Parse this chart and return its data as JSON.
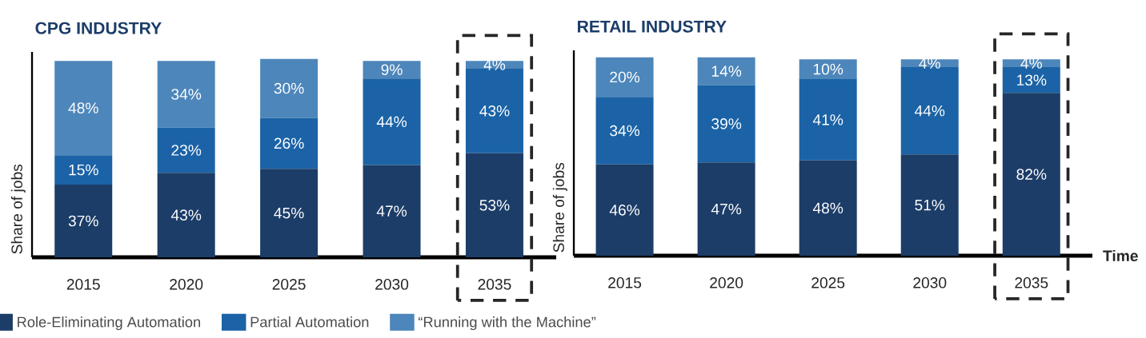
{
  "chart_data": [
    {
      "type": "bar",
      "title": "CPG INDUSTRY",
      "ylabel": "Share of jobs",
      "stacked": true,
      "legend": "bottom",
      "categories": [
        "2015",
        "2020",
        "2025",
        "2030",
        "2035"
      ],
      "series": [
        {
          "name": "Role-Eliminating Automation",
          "color": "#1c3d68",
          "values": [
            37,
            43,
            45,
            47,
            53
          ],
          "value_labels": [
            "37%",
            "43%",
            "45%",
            "47%",
            "53%"
          ]
        },
        {
          "name": "Partial Automation",
          "color": "#1b63a6",
          "values": [
            15,
            23,
            26,
            44,
            43
          ],
          "value_labels": [
            "15%",
            "23%",
            "26%",
            "44%",
            "43%"
          ]
        },
        {
          "name": "“Running with the Machine”",
          "color": "#4d86ba",
          "values": [
            48,
            34,
            30,
            9,
            4
          ],
          "value_labels": [
            "48%",
            "34%",
            "30%",
            "9%",
            "4%"
          ]
        }
      ]
    },
    {
      "type": "bar",
      "title": "RETAIL INDUSTRY",
      "ylabel": "Share of jobs",
      "xlabel": "Time",
      "stacked": true,
      "categories": [
        "2015",
        "2020",
        "2025",
        "2030",
        "2035"
      ],
      "series": [
        {
          "color": "#1c3d68",
          "values": [
            46,
            47,
            48,
            51,
            82
          ],
          "value_labels": [
            "46%",
            "47%",
            "48%",
            "51%",
            "82%"
          ]
        },
        {
          "color": "#1b63a6",
          "values": [
            34,
            39,
            41,
            44,
            13
          ],
          "value_labels": [
            "34%",
            "39%",
            "41%",
            "44%",
            "13%"
          ]
        },
        {
          "color": "#4d86ba",
          "values": [
            20,
            14,
            10,
            4,
            4
          ],
          "value_labels": [
            "20%",
            "14%",
            "10%",
            "4%",
            "4%"
          ]
        }
      ]
    }
  ]
}
